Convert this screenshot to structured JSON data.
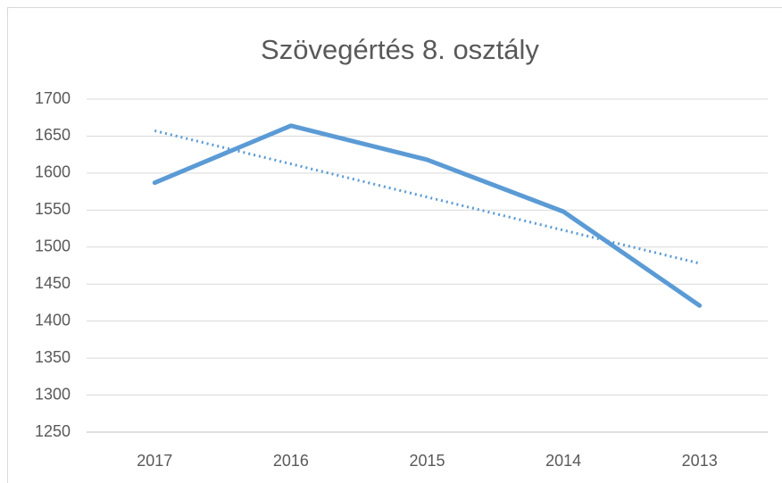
{
  "chart_data": {
    "type": "line",
    "title": "Szövegértés 8. osztály",
    "categories": [
      "2017",
      "2016",
      "2015",
      "2014",
      "2013"
    ],
    "series": [
      {
        "color": "#5b9bd5",
        "values": [
          1587,
          1664,
          1618,
          1548,
          1421
        ],
        "style": "solid"
      },
      {
        "color": "#5b9bd5",
        "values": [
          1657.2,
          1612.4,
          1567.6,
          1522.8,
          1478
        ],
        "style": "dotted",
        "trendline": "linear"
      }
    ],
    "ylim": [
      1250,
      1700
    ],
    "yticks": [
      1250,
      1300,
      1350,
      1400,
      1450,
      1500,
      1550,
      1600,
      1650,
      1700
    ],
    "grid": true
  }
}
